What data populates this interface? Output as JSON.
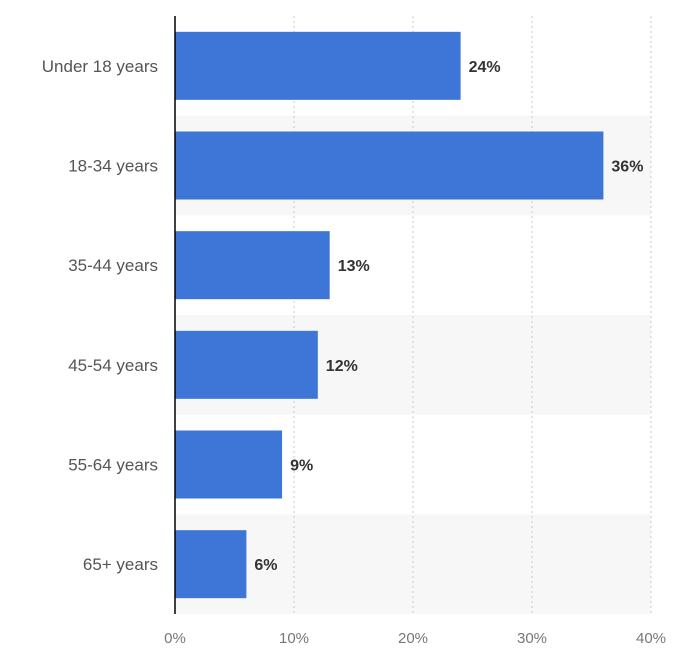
{
  "chart_data": {
    "type": "bar",
    "orientation": "horizontal",
    "title": "",
    "xlabel": "",
    "ylabel": "",
    "categories": [
      "Under 18 years",
      "18-34 years",
      "35-44 years",
      "45-54 years",
      "55-64 years",
      "65+ years"
    ],
    "values": [
      24,
      36,
      13,
      12,
      9,
      6
    ],
    "data_labels": [
      "24%",
      "36%",
      "13%",
      "12%",
      "9%",
      "6%"
    ],
    "xlim": [
      0,
      40
    ],
    "ticks": [
      0,
      10,
      20,
      30,
      40
    ],
    "tick_labels": [
      "0%",
      "10%",
      "20%",
      "30%",
      "40%"
    ],
    "grid": true,
    "legend": "none",
    "colors": {
      "bar": "#3d76d6",
      "band": "#f7f7f7",
      "grid": "#c8c8c8",
      "axis": "#000000"
    }
  }
}
